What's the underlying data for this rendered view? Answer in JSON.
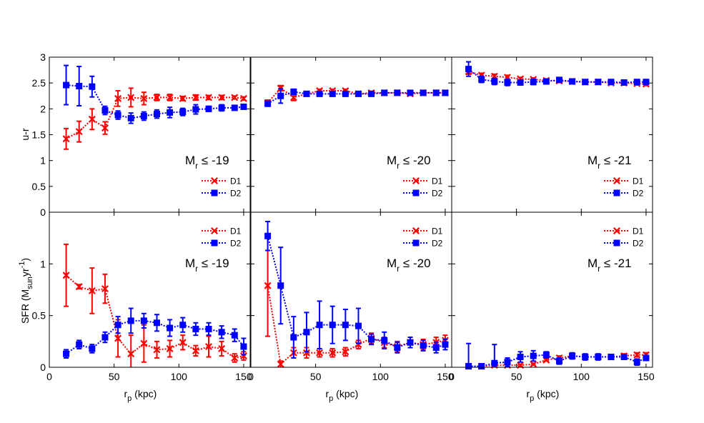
{
  "chart_data": {
    "type": "scatter",
    "layout": "2x3 grid, shared axes",
    "x": [
      13,
      23,
      33,
      43,
      53,
      63,
      73,
      83,
      93,
      103,
      113,
      123,
      133,
      143,
      150
    ],
    "xlabel_main": "r",
    "xlabel_sub": "p",
    "xlabel_unit": " (kpc)",
    "xlim": [
      0,
      155
    ],
    "xticks": [
      0,
      50,
      100,
      150
    ],
    "legend_placement": "right, near top of each panel",
    "rows": [
      {
        "ylabel": "u-r",
        "ylim": [
          0,
          3
        ],
        "yticks": [
          0,
          0.5,
          1,
          1.5,
          2,
          2.5,
          3
        ],
        "yticklabels": [
          "0",
          "0.5",
          "1",
          "1.5",
          "2",
          "2.5",
          "3"
        ]
      },
      {
        "ylabel_main": "SFR (M",
        "ylabel_sub": "sun",
        "ylabel_mid": "yr",
        "ylabel_sup": "-1",
        "ylabel_end": ")",
        "ylim": [
          0,
          1.5
        ],
        "yticks": [
          0,
          0.5,
          1
        ],
        "yticklabels": [
          "0",
          "0.5",
          "1"
        ]
      }
    ],
    "panels": [
      {
        "row": 0,
        "col": 0,
        "label_m": "M",
        "label_sub": "r",
        "label_cond": " ≤ -19",
        "series": [
          {
            "name": "D1",
            "color": "#ff0000",
            "marker": "x",
            "values": [
              1.42,
              1.56,
              1.8,
              1.63,
              2.2,
              2.22,
              2.2,
              2.22,
              2.22,
              2.2,
              2.22,
              2.22,
              2.22,
              2.22,
              2.2
            ],
            "errors": [
              0.2,
              0.2,
              0.2,
              0.12,
              0.15,
              0.18,
              0.12,
              0.06,
              0.06,
              0.04,
              0.05,
              0.04,
              0.04,
              0.03,
              0.03
            ]
          },
          {
            "name": "D2",
            "color": "#0000ff",
            "marker": "square",
            "values": [
              2.46,
              2.44,
              2.43,
              1.97,
              1.88,
              1.82,
              1.86,
              1.9,
              1.93,
              1.94,
              1.99,
              2.0,
              2.02,
              2.02,
              2.04
            ],
            "errors": [
              0.38,
              0.38,
              0.2,
              0.08,
              0.08,
              0.1,
              0.08,
              0.08,
              0.1,
              0.07,
              0.09,
              0.05,
              0.06,
              0.04,
              0.04
            ]
          }
        ]
      },
      {
        "row": 0,
        "col": 1,
        "label_m": "M",
        "label_sub": "r",
        "label_cond": " ≤ -20",
        "series": [
          {
            "name": "D1",
            "color": "#ff0000",
            "marker": "x",
            "values": [
              2.12,
              2.4,
              2.22,
              2.29,
              2.35,
              2.35,
              2.35,
              2.29,
              2.31,
              2.31,
              2.31,
              2.29,
              2.31,
              2.31,
              2.31
            ],
            "errors": [
              0.05,
              0.05,
              0.06,
              0.04,
              0.03,
              0.03,
              0.03,
              0.03,
              0.03,
              0.03,
              0.02,
              0.02,
              0.02,
              0.02,
              0.02
            ]
          },
          {
            "name": "D2",
            "color": "#0000ff",
            "marker": "square",
            "values": [
              2.1,
              2.25,
              2.33,
              2.29,
              2.29,
              2.29,
              2.29,
              2.29,
              2.29,
              2.31,
              2.31,
              2.31,
              2.31,
              2.31,
              2.31
            ],
            "errors": [
              0.05,
              0.14,
              0.05,
              0.03,
              0.03,
              0.03,
              0.03,
              0.03,
              0.03,
              0.03,
              0.02,
              0.02,
              0.02,
              0.02,
              0.02
            ]
          }
        ]
      },
      {
        "row": 0,
        "col": 2,
        "label_m": "M",
        "label_sub": "r",
        "label_cond": " ≤ -21",
        "series": [
          {
            "name": "D1",
            "color": "#ff0000",
            "marker": "x",
            "values": [
              2.72,
              2.65,
              2.63,
              2.61,
              2.58,
              2.57,
              2.55,
              2.54,
              2.53,
              2.52,
              2.52,
              2.5,
              2.5,
              2.49,
              2.48
            ],
            "errors": [
              0.05,
              0.04,
              0.04,
              0.04,
              0.03,
              0.03,
              0.03,
              0.03,
              0.03,
              0.03,
              0.03,
              0.03,
              0.03,
              0.03,
              0.03
            ]
          },
          {
            "name": "D2",
            "color": "#0000ff",
            "marker": "square",
            "values": [
              2.77,
              2.57,
              2.53,
              2.51,
              2.51,
              2.52,
              2.53,
              2.56,
              2.53,
              2.52,
              2.52,
              2.52,
              2.51,
              2.52,
              2.52
            ],
            "errors": [
              0.14,
              0.06,
              0.06,
              0.06,
              0.05,
              0.05,
              0.04,
              0.04,
              0.04,
              0.04,
              0.03,
              0.03,
              0.03,
              0.03,
              0.03
            ]
          }
        ]
      },
      {
        "row": 1,
        "col": 0,
        "label_m": "M",
        "label_sub": "r",
        "label_cond": " ≤ -19",
        "series": [
          {
            "name": "D1",
            "color": "#ff0000",
            "marker": "x",
            "values": [
              0.89,
              0.78,
              0.74,
              0.76,
              0.28,
              0.13,
              0.23,
              0.17,
              0.18,
              0.24,
              0.16,
              0.2,
              0.18,
              0.09,
              0.11
            ],
            "errors": [
              0.3,
              0.02,
              0.22,
              0.14,
              0.18,
              0.18,
              0.18,
              0.08,
              0.08,
              0.07,
              0.05,
              0.1,
              0.07,
              0.04,
              0.04
            ]
          },
          {
            "name": "D2",
            "color": "#0000ff",
            "marker": "square",
            "values": [
              0.13,
              0.22,
              0.18,
              0.29,
              0.41,
              0.45,
              0.45,
              0.43,
              0.38,
              0.41,
              0.37,
              0.37,
              0.34,
              0.31,
              0.2
            ]
          },
          {
            "name": "D2err",
            "color": "#0000ff",
            "marker": "none",
            "errors": [
              0.04,
              0.04,
              0.04,
              0.05,
              0.08,
              0.12,
              0.07,
              0.08,
              0.08,
              0.07,
              0.06,
              0.06,
              0.06,
              0.06,
              0.08
            ]
          }
        ]
      },
      {
        "row": 1,
        "col": 1,
        "label_m": "M",
        "label_sub": "r",
        "label_cond": " ≤ -20",
        "series": [
          {
            "name": "D1",
            "color": "#ff0000",
            "marker": "x",
            "values": [
              0.79,
              0.03,
              0.14,
              0.14,
              0.14,
              0.14,
              0.15,
              0.22,
              0.28,
              0.24,
              0.2,
              0.24,
              0.22,
              0.24,
              0.26
            ],
            "errors": [
              0.49,
              0.03,
              0.05,
              0.05,
              0.04,
              0.04,
              0.04,
              0.04,
              0.05,
              0.05,
              0.05,
              0.05,
              0.05,
              0.05,
              0.05
            ]
          },
          {
            "name": "D2",
            "color": "#0000ff",
            "marker": "square",
            "values": [
              1.27,
              0.79,
              0.29,
              0.34,
              0.41,
              0.41,
              0.41,
              0.4,
              0.27,
              0.26,
              0.19,
              0.24,
              0.21,
              0.19,
              0.22
            ]
          },
          {
            "name": "D2err",
            "color": "#0000ff",
            "marker": "none",
            "errors": [
              0.14,
              0.37,
              0.2,
              0.19,
              0.23,
              0.18,
              0.15,
              0.17,
              0.05,
              0.08,
              0.05,
              0.05,
              0.05,
              0.05,
              0.05
            ]
          }
        ]
      },
      {
        "row": 1,
        "col": 2,
        "label_m": "M",
        "label_sub": "r",
        "label_cond": " ≤ -21",
        "series": [
          {
            "name": "D1",
            "color": "#ff0000",
            "marker": "x",
            "values": [
              0.01,
              0.01,
              0.02,
              0.02,
              0.02,
              0.03,
              0.07,
              0.09,
              0.11,
              0.1,
              0.1,
              0.1,
              0.11,
              0.12,
              0.12
            ],
            "errors": [
              0.01,
              0.01,
              0.01,
              0.01,
              0.01,
              0.01,
              0.01,
              0.02,
              0.02,
              0.02,
              0.02,
              0.02,
              0.02,
              0.02,
              0.02
            ]
          },
          {
            "name": "D2",
            "color": "#0000ff",
            "marker": "square",
            "values": [
              0.01,
              0.01,
              0.04,
              0.05,
              0.1,
              0.11,
              0.12,
              0.06,
              0.11,
              0.1,
              0.1,
              0.1,
              0.1,
              0.05,
              0.09
            ]
          },
          {
            "name": "D2err",
            "color": "#0000ff",
            "marker": "none",
            "errors": [
              0.22,
              0.01,
              0.18,
              0.04,
              0.05,
              0.05,
              0.03,
              0.03,
              0.03,
              0.03,
              0.03,
              0.02,
              0.02,
              0.03,
              0.02
            ]
          }
        ]
      }
    ],
    "legend": [
      {
        "name": "D1",
        "color": "#ff0000",
        "marker": "x"
      },
      {
        "name": "D2",
        "color": "#0000ff",
        "marker": "square"
      }
    ]
  }
}
